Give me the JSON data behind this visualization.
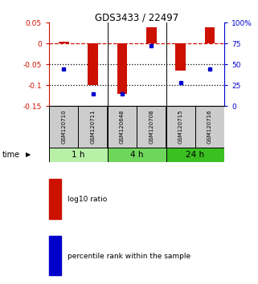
{
  "title": "GDS3433 / 22497",
  "samples": [
    "GSM120710",
    "GSM120711",
    "GSM120648",
    "GSM120708",
    "GSM120715",
    "GSM120716"
  ],
  "log10_ratio": [
    0.005,
    -0.1,
    -0.12,
    0.04,
    -0.065,
    0.04
  ],
  "percentile_rank": [
    44,
    15,
    15,
    72,
    28,
    44
  ],
  "groups": [
    {
      "label": "1 h",
      "start": 0,
      "end": 2,
      "color": "#b8f0a8"
    },
    {
      "label": "4 h",
      "start": 2,
      "end": 4,
      "color": "#6ed65a"
    },
    {
      "label": "24 h",
      "start": 4,
      "end": 6,
      "color": "#3ac020"
    }
  ],
  "bar_color": "#cc1100",
  "dot_color": "#0000cc",
  "ylim_left": [
    -0.15,
    0.05
  ],
  "ylim_right": [
    0,
    100
  ],
  "yticks_left": [
    0.05,
    0,
    -0.05,
    -0.1,
    -0.15
  ],
  "yticks_right": [
    100,
    75,
    50,
    25,
    0
  ],
  "hline_zero_color": "#cc1100",
  "hline_dot1": -0.05,
  "hline_dot2": -0.1,
  "bar_width": 0.35,
  "sample_box_color": "#cccccc",
  "legend_red_label": "log10 ratio",
  "legend_blue_label": "percentile rank within the sample",
  "time_label": "time"
}
